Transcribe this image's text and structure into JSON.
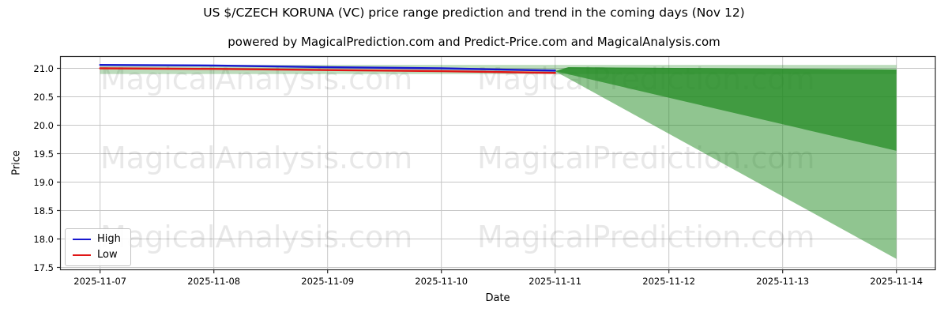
{
  "header": {
    "title": "US $/CZECH KORUNA (VC) price range prediction and trend in the coming days (Nov 12)",
    "subtitle": "powered by MagicalPrediction.com and Predict-Price.com and MagicalAnalysis.com"
  },
  "axes": {
    "y_label": "Price",
    "x_label": "Date",
    "y_ticks": [
      {
        "value": 21.0,
        "label": "21.0"
      },
      {
        "value": 20.5,
        "label": "20.5"
      },
      {
        "value": 20.0,
        "label": "20.0"
      },
      {
        "value": 19.5,
        "label": "19.5"
      },
      {
        "value": 19.0,
        "label": "19.0"
      },
      {
        "value": 18.5,
        "label": "18.5"
      },
      {
        "value": 18.0,
        "label": "18.0"
      },
      {
        "value": 17.5,
        "label": "17.5"
      }
    ],
    "x_ticks": [
      "2025-11-07",
      "2025-11-08",
      "2025-11-09",
      "2025-11-10",
      "2025-11-11",
      "2025-11-12",
      "2025-11-13",
      "2025-11-14"
    ]
  },
  "legend": {
    "items": [
      {
        "label": "High",
        "color": "#1717cf"
      },
      {
        "label": "Low",
        "color": "#e01616"
      }
    ]
  },
  "watermarks": {
    "left_text": "MagicalAnalysis.com",
    "right_text": "MagicalPrediction.com"
  },
  "chart_data": {
    "type": "line",
    "title": "US $/CZECH KORUNA (VC) price range prediction and trend in the coming days (Nov 12)",
    "xlabel": "Date",
    "ylabel": "Price",
    "x": [
      "2025-11-07",
      "2025-11-08",
      "2025-11-09",
      "2025-11-10",
      "2025-11-11",
      "2025-11-12",
      "2025-11-13",
      "2025-11-14"
    ],
    "ylim": [
      17.45,
      21.2
    ],
    "grid": true,
    "legend_position": "lower left",
    "series": [
      {
        "name": "High",
        "color": "#1717cf",
        "x_start": "2025-11-07",
        "x_end": "2025-11-11",
        "values": [
          21.06,
          21.05,
          21.02,
          21.0,
          20.96
        ]
      },
      {
        "name": "Low",
        "color": "#e01616",
        "x_start": "2025-11-07",
        "x_end": "2025-11-11",
        "values": [
          21.0,
          20.99,
          20.97,
          20.95,
          20.92
        ]
      }
    ],
    "prediction_band": {
      "x_start": "2025-11-07",
      "x_end": "2025-11-14",
      "top": 21.06,
      "bottom": 20.9,
      "color": "rgba(34,139,34,0.30)"
    },
    "prediction_fans": [
      {
        "name": "outer-range",
        "apex_x": "2025-11-11",
        "apex_value": 20.95,
        "shoulder_value": 21.02,
        "end_x": "2025-11-14",
        "end_top": 20.98,
        "end_bottom": 17.65,
        "color": "rgba(34,139,34,0.50)"
      },
      {
        "name": "inner-range",
        "apex_x": "2025-11-11",
        "apex_value": 20.95,
        "shoulder_value": 21.02,
        "end_x": "2025-11-14",
        "end_top": 20.98,
        "end_bottom": 19.55,
        "color": "rgba(34,139,34,0.72)"
      }
    ]
  }
}
